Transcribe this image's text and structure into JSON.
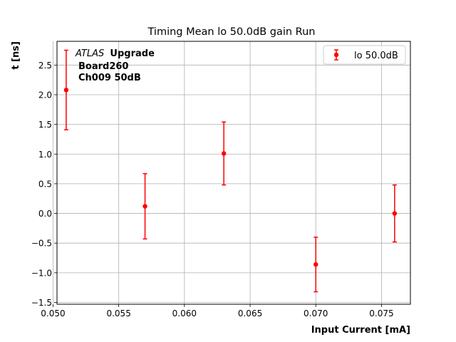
{
  "chart_data": {
    "type": "scatter",
    "title": "Timing Mean lo 50.0dB gain Run",
    "xlabel": "Input Current [mA]",
    "ylabel": "t [ns]",
    "xlim": [
      0.0503,
      0.0772
    ],
    "ylim": [
      -1.53,
      2.9
    ],
    "x_ticks": [
      0.05,
      0.055,
      0.06,
      0.065,
      0.07,
      0.075
    ],
    "x_tick_labels": [
      "0.050",
      "0.055",
      "0.060",
      "0.065",
      "0.070",
      "0.075"
    ],
    "y_ticks": [
      -1.5,
      -1.0,
      -0.5,
      0.0,
      0.5,
      1.0,
      1.5,
      2.0,
      2.5
    ],
    "y_tick_labels": [
      "−1.5",
      "−1.0",
      "−0.5",
      "0.0",
      "0.5",
      "1.0",
      "1.5",
      "2.0",
      "2.5"
    ],
    "grid": true,
    "legend_position": "top-right",
    "annotation": {
      "experiment": "ATLAS",
      "tag": "Upgrade",
      "line2": "Board260",
      "line3": "Ch009 50dB"
    },
    "series": [
      {
        "name": "lo 50.0dB",
        "color": "#ff0000",
        "x": [
          0.051,
          0.057,
          0.063,
          0.07,
          0.076
        ],
        "y": [
          2.08,
          0.12,
          1.01,
          -0.86,
          0.0
        ],
        "yerr": [
          0.67,
          0.55,
          0.53,
          0.46,
          0.48
        ]
      }
    ]
  }
}
